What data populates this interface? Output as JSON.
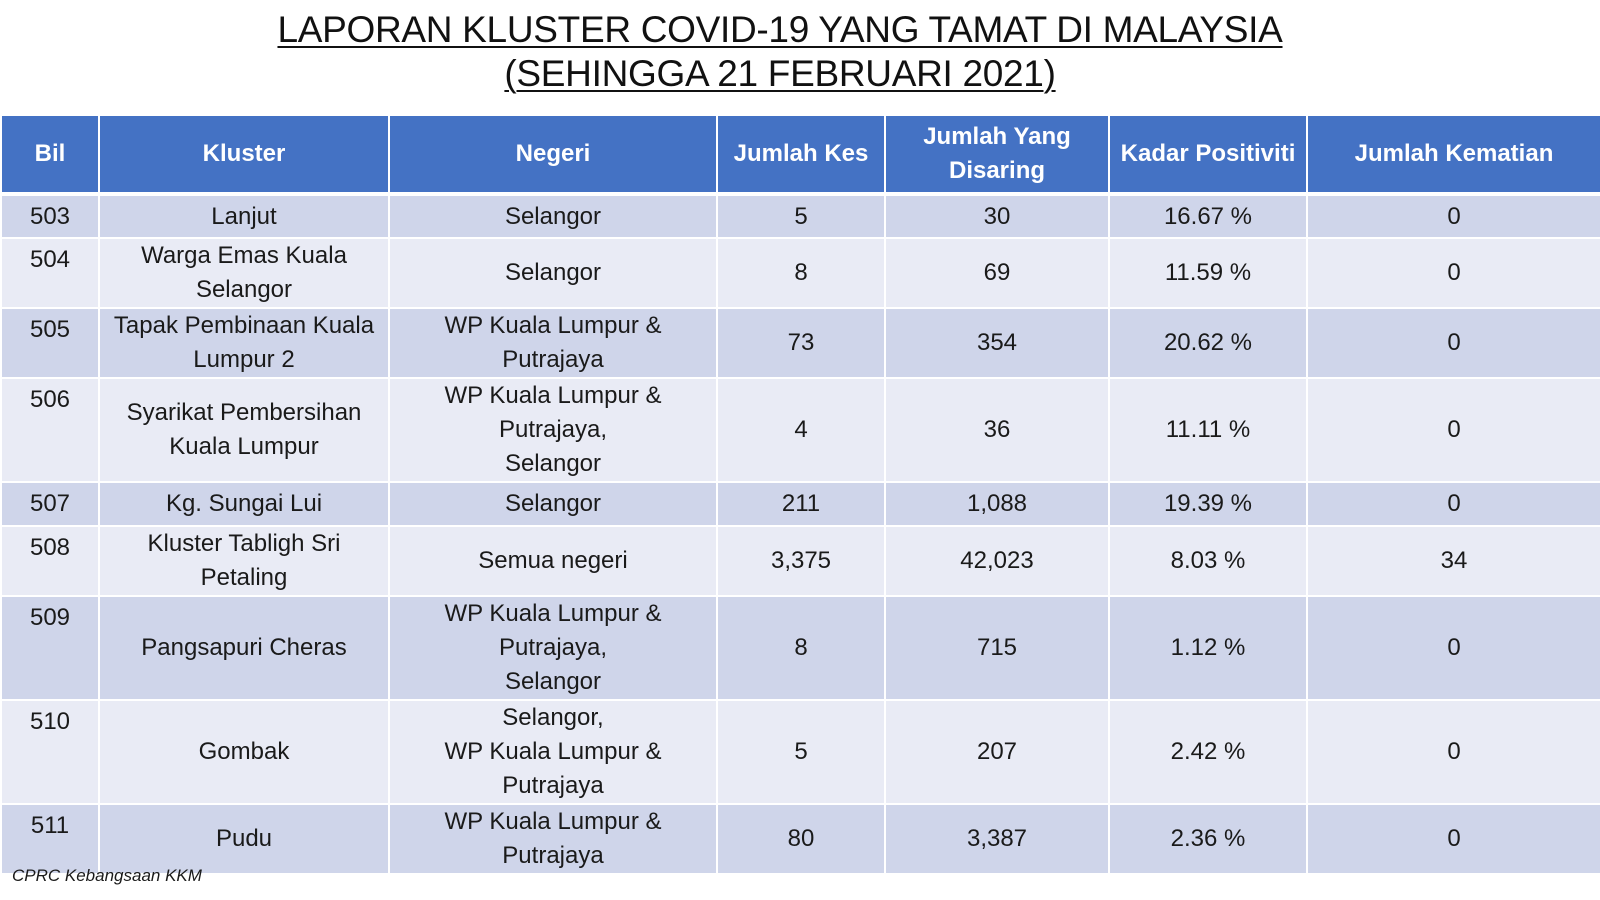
{
  "title": {
    "line1": "LAPORAN KLUSTER COVID-19 YANG TAMAT DI MALAYSIA",
    "line2": "(SEHINGGA 21 FEBRUARI 2021)"
  },
  "table": {
    "headers": {
      "bil": "Bil",
      "kluster": "Kluster",
      "negeri": "Negeri",
      "jumlah_kes": "Jumlah Kes",
      "jumlah_disaring_1": "Jumlah Yang",
      "jumlah_disaring_2": "Disaring",
      "kadar_positiviti": "Kadar Positiviti",
      "jumlah_kematian": "Jumlah Kematian"
    },
    "rows": [
      {
        "bil": "503",
        "kluster": [
          "Lanjut"
        ],
        "negeri": [
          "Selangor"
        ],
        "jumlah_kes": "5",
        "jumlah_disaring": "30",
        "kadar_positiviti": "16.67 %",
        "jumlah_kematian": "0"
      },
      {
        "bil": "504",
        "kluster": [
          "Warga Emas Kuala",
          "Selangor"
        ],
        "negeri": [
          "Selangor"
        ],
        "jumlah_kes": "8",
        "jumlah_disaring": "69",
        "kadar_positiviti": "11.59 %",
        "jumlah_kematian": "0"
      },
      {
        "bil": "505",
        "kluster": [
          "Tapak Pembinaan Kuala",
          "Lumpur 2"
        ],
        "negeri": [
          "WP Kuala Lumpur &",
          "Putrajaya"
        ],
        "jumlah_kes": "73",
        "jumlah_disaring": "354",
        "kadar_positiviti": "20.62 %",
        "jumlah_kematian": "0"
      },
      {
        "bil": "506",
        "kluster": [
          "Syarikat Pembersihan",
          "Kuala Lumpur"
        ],
        "negeri": [
          "WP Kuala Lumpur &",
          "Putrajaya,",
          "Selangor"
        ],
        "jumlah_kes": "4",
        "jumlah_disaring": "36",
        "kadar_positiviti": "11.11 %",
        "jumlah_kematian": "0"
      },
      {
        "bil": "507",
        "kluster": [
          "Kg. Sungai Lui"
        ],
        "negeri": [
          "Selangor"
        ],
        "jumlah_kes": "211",
        "jumlah_disaring": "1,088",
        "kadar_positiviti": "19.39 %",
        "jumlah_kematian": "0"
      },
      {
        "bil": "508",
        "kluster": [
          "Kluster Tabligh Sri",
          "Petaling"
        ],
        "negeri": [
          "Semua negeri"
        ],
        "jumlah_kes": "3,375",
        "jumlah_disaring": "42,023",
        "kadar_positiviti": "8.03 %",
        "jumlah_kematian": "34"
      },
      {
        "bil": "509",
        "kluster": [
          "Pangsapuri Cheras"
        ],
        "negeri": [
          "WP Kuala Lumpur &",
          "Putrajaya,",
          "Selangor"
        ],
        "jumlah_kes": "8",
        "jumlah_disaring": "715",
        "kadar_positiviti": "1.12 %",
        "jumlah_kematian": "0"
      },
      {
        "bil": "510",
        "kluster": [
          "Gombak"
        ],
        "negeri": [
          "Selangor,",
          "WP Kuala Lumpur &",
          "Putrajaya"
        ],
        "jumlah_kes": "5",
        "jumlah_disaring": "207",
        "kadar_positiviti": "2.42 %",
        "jumlah_kematian": "0"
      },
      {
        "bil": "511",
        "kluster": [
          "Pudu"
        ],
        "negeri": [
          "WP Kuala Lumpur &",
          "Putrajaya"
        ],
        "jumlah_kes": "80",
        "jumlah_disaring": "3,387",
        "kadar_positiviti": "2.36 %",
        "jumlah_kematian": "0"
      }
    ]
  },
  "footer": {
    "source": "CPRC Kebangsaan KKM"
  },
  "colors": {
    "header_bg": "#4472c4",
    "row_odd_bg": "#cfd5ea",
    "row_even_bg": "#e9ebf5"
  }
}
